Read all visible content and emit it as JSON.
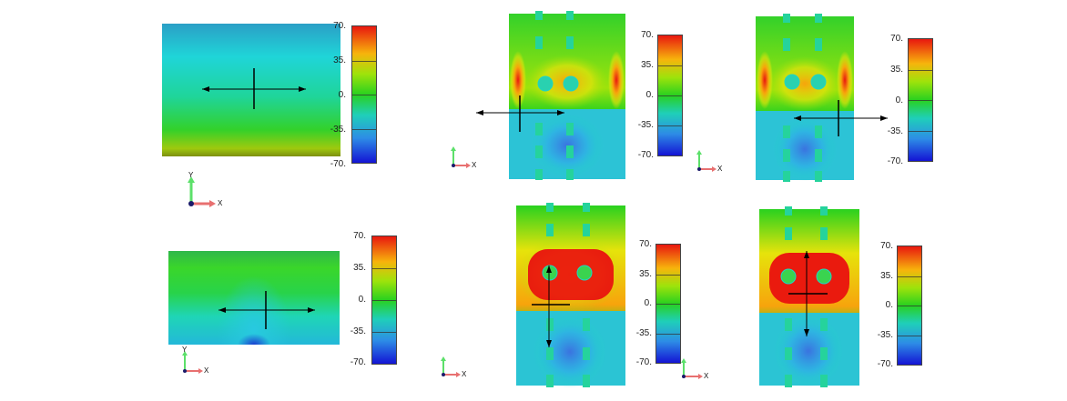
{
  "colorbar": {
    "labels": [
      "70.",
      "35.",
      "0.",
      "-35.",
      "-70."
    ]
  },
  "axes": {
    "y_label": "Y",
    "x_label": "X"
  },
  "panels": [
    {
      "id": "p1",
      "layout": "uniform",
      "arrows": "horizontal"
    },
    {
      "id": "p2",
      "layout": "holes",
      "arrows": "horizontal-left"
    },
    {
      "id": "p3",
      "layout": "holes",
      "arrows": "horizontal-right"
    },
    {
      "id": "p4",
      "layout": "uniform-dip",
      "arrows": "horizontal"
    },
    {
      "id": "p5",
      "layout": "holes-strong",
      "arrows": "vertical-left"
    },
    {
      "id": "p6",
      "layout": "holes-strong",
      "arrows": "vertical-right"
    }
  ],
  "colors": {
    "red": "#e8170f",
    "orange": "#f7a40c",
    "yellow": "#e6e30b",
    "green": "#29d11f",
    "cyan": "#1fd5c4",
    "blue": "#2d8ce6",
    "darkblue": "#1414d4"
  }
}
